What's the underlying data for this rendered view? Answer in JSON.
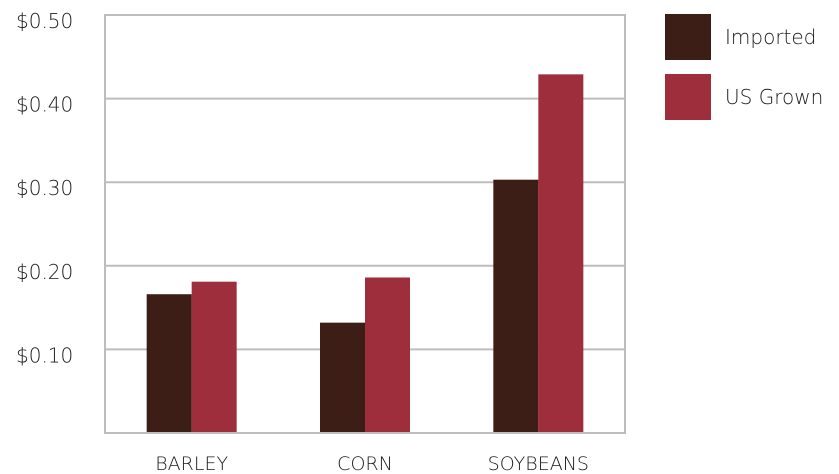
{
  "chart_data": {
    "type": "bar",
    "categories": [
      "BARLEY",
      "CORN",
      "SOYBEANS"
    ],
    "series": [
      {
        "name": "Imported",
        "values": [
          0.166,
          0.132,
          0.303
        ],
        "color": "#3d1e17"
      },
      {
        "name": "US Grown",
        "values": [
          0.181,
          0.186,
          0.429
        ],
        "color": "#9e2e3b"
      }
    ],
    "yticks": [
      "$0.10",
      "$0.20",
      "$0.30",
      "$0.40",
      "$0.50"
    ],
    "ylim": [
      0,
      0.5
    ],
    "grid": true,
    "legend_position": "right",
    "title": "",
    "xlabel": "",
    "ylabel": ""
  }
}
